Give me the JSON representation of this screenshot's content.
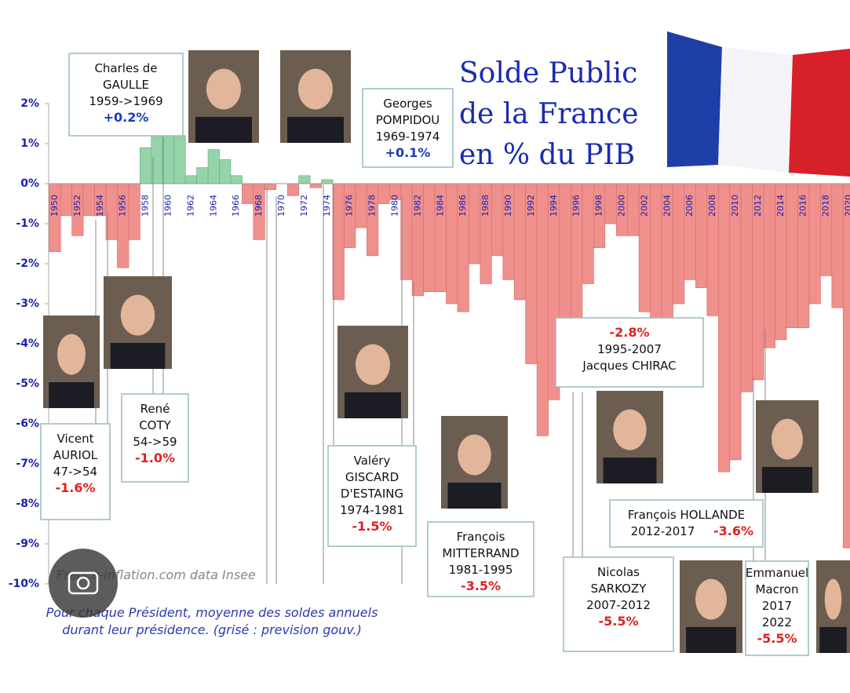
{
  "chart_data": {
    "type": "bar",
    "title": [
      "Solde Public",
      "de la France",
      "en % du PIB"
    ],
    "categories": [
      "1950",
      null,
      "1952",
      null,
      "1954",
      null,
      "1956",
      null,
      "1958",
      null,
      "1960",
      null,
      "1962",
      null,
      "1964",
      null,
      "1966",
      null,
      "1968",
      null,
      "1970",
      null,
      "1972",
      null,
      "1974",
      null,
      "1976",
      null,
      "1978",
      null,
      "1980",
      null,
      "1982",
      null,
      "1984",
      null,
      "1986",
      null,
      "1988",
      null,
      "1990",
      null,
      "1992",
      null,
      "1994",
      null,
      "1996",
      null,
      "1998",
      null,
      "2000",
      null,
      "2002",
      null,
      "2004",
      null,
      "2006",
      null,
      "2008",
      null,
      "2010",
      null,
      "2012",
      null,
      "2014",
      null,
      "2016",
      null,
      "2018",
      null,
      "2020"
    ],
    "values": [
      -1.7,
      -0.8,
      -1.3,
      -0.8,
      -0.8,
      -1.4,
      -2.1,
      -1.4,
      0.9,
      1.5,
      1.2,
      1.2,
      0.2,
      0.4,
      0.85,
      0.6,
      0.2,
      -0.5,
      -1.4,
      -0.15,
      0,
      -0.3,
      0.2,
      -0.1,
      0.1,
      -2.9,
      -1.6,
      -1.1,
      -1.8,
      -0.5,
      -0.4,
      -2.4,
      -2.8,
      -2.7,
      -2.7,
      -3.0,
      -3.2,
      -2.0,
      -2.5,
      -1.8,
      -2.4,
      -2.9,
      -4.5,
      -6.3,
      -5.4,
      -5.0,
      -3.9,
      -2.5,
      -1.6,
      -1.0,
      -1.3,
      -1.3,
      -3.2,
      -4.0,
      -3.6,
      -3.0,
      -2.4,
      -2.6,
      -3.3,
      -7.2,
      -6.9,
      -5.2,
      -4.9,
      -4.1,
      -3.9,
      -3.6,
      -3.6,
      -3.0,
      -2.3,
      -3.1,
      -9.1
    ],
    "colors": {
      "positive": "#94d4a8",
      "negative": "#f0908c"
    },
    "ylim": [
      -10,
      2
    ],
    "yticks": [
      {
        "value": 2,
        "label": "2%"
      },
      {
        "value": 1,
        "label": "1%"
      },
      {
        "value": 0,
        "label": "0%"
      },
      {
        "value": -1,
        "label": "-1%"
      },
      {
        "value": -2,
        "label": "-2%"
      },
      {
        "value": -3,
        "label": "-3%"
      },
      {
        "value": -4,
        "label": "-4%"
      },
      {
        "value": -5,
        "label": "-5%"
      },
      {
        "value": -6,
        "label": "-6%"
      },
      {
        "value": -7,
        "label": "-7%"
      },
      {
        "value": -8,
        "label": "-8%"
      },
      {
        "value": -9,
        "label": "-9%"
      },
      {
        "value": -10,
        "label": "-10%"
      }
    ],
    "presidents": [
      {
        "lines": [
          "Charles de",
          "GAULLE",
          "1959->1969"
        ],
        "value": "+0.2%"
      },
      {
        "lines": [
          "Georges",
          "POMPIDOU",
          "1969-1974"
        ],
        "value": "+0.1%"
      },
      {
        "lines": [
          "Vicent",
          "AURIOL",
          "47->54"
        ],
        "value": "-1.6%"
      },
      {
        "lines": [
          "René",
          "COTY",
          "54->59"
        ],
        "value": "-1.0%"
      },
      {
        "lines": [
          "Valéry",
          "GISCARD",
          "D'ESTAING",
          "1974-1981"
        ],
        "value": "-1.5%"
      },
      {
        "lines": [
          "François",
          "MITTERRAND",
          "1981-1995"
        ],
        "value": "-3.5%"
      },
      {
        "lines": [
          "1995-2007",
          "Jacques CHIRAC"
        ],
        "value": "-2.8%"
      },
      {
        "lines": [
          "François HOLLANDE",
          "2012-2017"
        ],
        "value": "-3.6%"
      },
      {
        "lines": [
          "Nicolas",
          "SARKOZY",
          "2007-2012"
        ],
        "value": "-5.5%"
      },
      {
        "lines": [
          "Emmanuel",
          "Macron",
          "2017",
          "2022"
        ],
        "value": "-5.5%"
      }
    ],
    "source": "France-inflation.com  data Insee",
    "note": [
      "Pour chaque Président, moyenne des soldes annuels",
      "durant leur présidence. (grisé : prevision gouv.)"
    ]
  }
}
